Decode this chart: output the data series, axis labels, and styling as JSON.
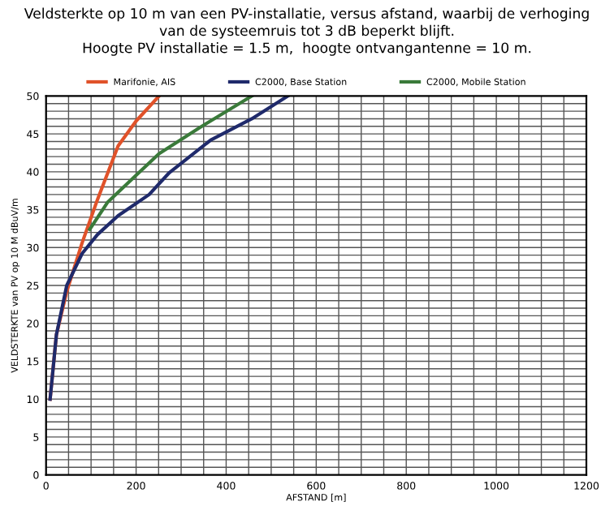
{
  "chart_data": {
    "type": "line",
    "title": "Veldsterkte op 10 m van een PV-installatie, versus afstand, waarbij de verhoging\nvan de systeemruis tot 3 dB beperkt blijft.\nHoogte PV installatie = 1.5 m,  hoogte ontvangantenne = 10 m.",
    "xlabel": "AFSTAND [m]",
    "ylabel": "VELDSTERKTE van PV op 10 M dBuV/m",
    "series": [
      {
        "name": "Marifonie, AIS",
        "color": "#e0522a",
        "x": [
          9,
          23,
          46,
          80,
          114,
          160,
          200,
          251
        ],
        "values": [
          10,
          18.5,
          24.2,
          30.6,
          36.3,
          43.4,
          46.7,
          50
        ]
      },
      {
        "name": "C2000, Base Station",
        "color": "#1f2a6b",
        "x": [
          9,
          23,
          46,
          80,
          114,
          160,
          229,
          274,
          366,
          457,
          537
        ],
        "values": [
          10,
          18.5,
          25,
          29.2,
          31.7,
          34.2,
          37,
          39.9,
          44.2,
          47,
          50
        ]
      },
      {
        "name": "C2000, Mobile Station",
        "color": "#3a7a3a",
        "x": [
          97,
          137,
          194,
          251,
          343,
          457
        ],
        "values": [
          32.4,
          36,
          39.2,
          42.4,
          45.9,
          50
        ]
      }
    ],
    "xlim": [
      0,
      1200
    ],
    "ylim": [
      0,
      50
    ],
    "xticks": [
      0,
      {
        "value": 50,
        "label": null
      },
      {
        "value": 100,
        "label": null
      },
      {
        "value": 150,
        "label": null
      },
      200,
      {
        "value": 250,
        "label": null
      },
      {
        "value": 300,
        "label": null
      },
      {
        "value": 350,
        "label": null
      },
      400,
      {
        "value": 450,
        "label": null
      },
      {
        "value": 500,
        "label": null
      },
      {
        "value": 550,
        "label": null
      },
      600,
      {
        "value": 650,
        "label": null
      },
      {
        "value": 700,
        "label": null
      },
      {
        "value": 750,
        "label": null
      },
      800,
      {
        "value": 850,
        "label": null
      },
      {
        "value": 900,
        "label": null
      },
      {
        "value": 950,
        "label": null
      },
      1000,
      {
        "value": 1050,
        "label": null
      },
      {
        "value": 1100,
        "label": null
      },
      {
        "value": 1150,
        "label": null
      },
      1200
    ],
    "yticks": [
      0,
      {
        "value": 1,
        "label": null
      },
      {
        "value": 2,
        "label": null
      },
      {
        "value": 3,
        "label": null
      },
      {
        "value": 4,
        "label": null
      },
      5,
      {
        "value": 6,
        "label": null
      },
      {
        "value": 7,
        "label": null
      },
      {
        "value": 8,
        "label": null
      },
      {
        "value": 9,
        "label": null
      },
      10,
      {
        "value": 11,
        "label": null
      },
      {
        "value": 12,
        "label": null
      },
      {
        "value": 13,
        "label": null
      },
      {
        "value": 14,
        "label": null
      },
      15,
      {
        "value": 16,
        "label": null
      },
      {
        "value": 17,
        "label": null
      },
      {
        "value": 18,
        "label": null
      },
      {
        "value": 19,
        "label": null
      },
      20,
      {
        "value": 21,
        "label": null
      },
      {
        "value": 22,
        "label": null
      },
      {
        "value": 23,
        "label": null
      },
      {
        "value": 24,
        "label": null
      },
      25,
      {
        "value": 26,
        "label": null
      },
      {
        "value": 27,
        "label": null
      },
      {
        "value": 28,
        "label": null
      },
      {
        "value": 29,
        "label": null
      },
      30,
      {
        "value": 31,
        "label": null
      },
      {
        "value": 32,
        "label": null
      },
      {
        "value": 33,
        "label": null
      },
      {
        "value": 34,
        "label": null
      },
      35,
      {
        "value": 36,
        "label": null
      },
      {
        "value": 37,
        "label": null
      },
      {
        "value": 38,
        "label": null
      },
      {
        "value": 39,
        "label": null
      },
      40,
      {
        "value": 41,
        "label": null
      },
      {
        "value": 42,
        "label": null
      },
      {
        "value": 43,
        "label": null
      },
      {
        "value": 44,
        "label": null
      },
      45,
      {
        "value": 46,
        "label": null
      },
      {
        "value": 47,
        "label": null
      },
      {
        "value": 48,
        "label": null
      },
      {
        "value": 49,
        "label": null
      },
      50
    ],
    "grid": true,
    "legend": "top",
    "marker": "none",
    "line_style": "solid"
  }
}
